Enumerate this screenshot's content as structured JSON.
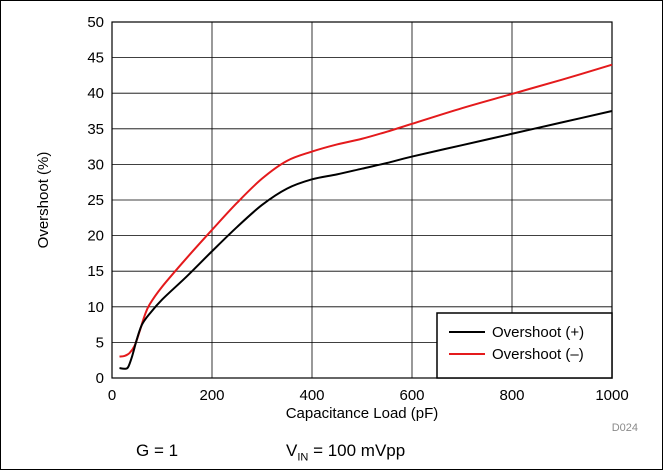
{
  "chart_data": {
    "type": "line",
    "xlabel": "Capacitance Load (pF)",
    "ylabel": "Overshoot (%)",
    "xlim": [
      0,
      1000
    ],
    "ylim": [
      0,
      50
    ],
    "xticks": [
      0,
      200,
      400,
      600,
      800,
      1000
    ],
    "yticks": [
      0,
      5,
      10,
      15,
      20,
      25,
      30,
      35,
      40,
      45,
      50
    ],
    "grid": true,
    "legend_position": "bottom-right",
    "series": [
      {
        "name": "Overshoot (+)",
        "color": "#000000",
        "x": [
          15,
          25,
          32,
          40,
          50,
          60,
          75,
          100,
          150,
          200,
          250,
          300,
          350,
          400,
          450,
          500,
          550,
          600,
          700,
          800,
          900,
          1000
        ],
        "y": [
          1.4,
          1.3,
          1.5,
          3.0,
          5.5,
          7.5,
          9.0,
          11.0,
          14.3,
          17.8,
          21.2,
          24.3,
          26.6,
          27.9,
          28.6,
          29.4,
          30.2,
          31.1,
          32.7,
          34.3,
          35.9,
          37.5
        ]
      },
      {
        "name": "Overshoot (–)",
        "color": "#e41a1c",
        "x": [
          15,
          25,
          35,
          45,
          55,
          65,
          75,
          100,
          150,
          200,
          250,
          300,
          350,
          400,
          450,
          500,
          550,
          600,
          700,
          800,
          900,
          1000
        ],
        "y": [
          3.0,
          3.1,
          3.5,
          4.5,
          6.5,
          8.7,
          10.3,
          12.8,
          16.9,
          20.8,
          24.6,
          28.0,
          30.5,
          31.8,
          32.8,
          33.6,
          34.6,
          35.7,
          37.9,
          39.9,
          41.9,
          44.0
        ]
      }
    ]
  },
  "figure_id": "D024",
  "conditions": {
    "gain": "G = 1",
    "vin_symbol": "V",
    "vin_subscript": "IN",
    "vin_value": " = 100 mVpp"
  }
}
